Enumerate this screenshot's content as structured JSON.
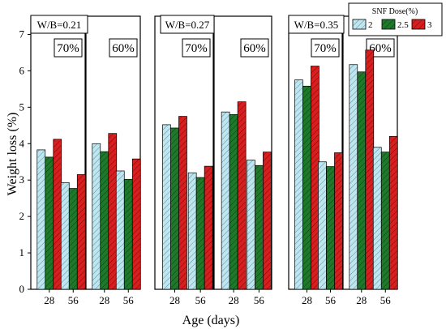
{
  "chart_data": {
    "type": "bar",
    "ylabel": "Weight loss (%)",
    "xlabel": "Age (days)",
    "ylim": [
      0,
      7.5
    ],
    "yticks": [
      0,
      1,
      2,
      3,
      4,
      5,
      6,
      7
    ],
    "categories": [
      "28",
      "56"
    ],
    "legend": {
      "title": "SNF Dose(%)",
      "entries": [
        "2",
        "2.5",
        "3"
      ],
      "placement": "top-right"
    },
    "series_colors": [
      "#bfe6ef",
      "#1e7a2a",
      "#d81e1e"
    ],
    "groups": [
      {
        "label": "W/B=0.21",
        "panels": [
          {
            "label": "70%",
            "series": [
              {
                "name": "2",
                "values": [
                  3.83,
                  2.93
                ]
              },
              {
                "name": "2.5",
                "values": [
                  3.63,
                  2.77
                ]
              },
              {
                "name": "3",
                "values": [
                  4.12,
                  3.15
                ]
              }
            ]
          },
          {
            "label": "60%",
            "series": [
              {
                "name": "2",
                "values": [
                  4.0,
                  3.25
                ]
              },
              {
                "name": "2.5",
                "values": [
                  3.78,
                  3.02
                ]
              },
              {
                "name": "3",
                "values": [
                  4.28,
                  3.58
                ]
              }
            ]
          }
        ]
      },
      {
        "label": "W/B=0.27",
        "panels": [
          {
            "label": "70%",
            "series": [
              {
                "name": "2",
                "values": [
                  4.52,
                  3.2
                ]
              },
              {
                "name": "2.5",
                "values": [
                  4.43,
                  3.07
                ]
              },
              {
                "name": "3",
                "values": [
                  4.75,
                  3.38
                ]
              }
            ]
          },
          {
            "label": "60%",
            "series": [
              {
                "name": "2",
                "values": [
                  4.87,
                  3.55
                ]
              },
              {
                "name": "2.5",
                "values": [
                  4.8,
                  3.4
                ]
              },
              {
                "name": "3",
                "values": [
                  5.15,
                  3.77
                ]
              }
            ]
          }
        ]
      },
      {
        "label": "W/B=0.35",
        "panels": [
          {
            "label": "70%",
            "series": [
              {
                "name": "2",
                "values": [
                  5.75,
                  3.5
                ]
              },
              {
                "name": "2.5",
                "values": [
                  5.58,
                  3.37
                ]
              },
              {
                "name": "3",
                "values": [
                  6.13,
                  3.75
                ]
              }
            ]
          },
          {
            "label": "60%",
            "series": [
              {
                "name": "2",
                "values": [
                  6.17,
                  3.9
                ]
              },
              {
                "name": "2.5",
                "values": [
                  5.97,
                  3.77
                ]
              },
              {
                "name": "3",
                "values": [
                  6.57,
                  4.2
                ]
              }
            ]
          }
        ]
      }
    ]
  }
}
